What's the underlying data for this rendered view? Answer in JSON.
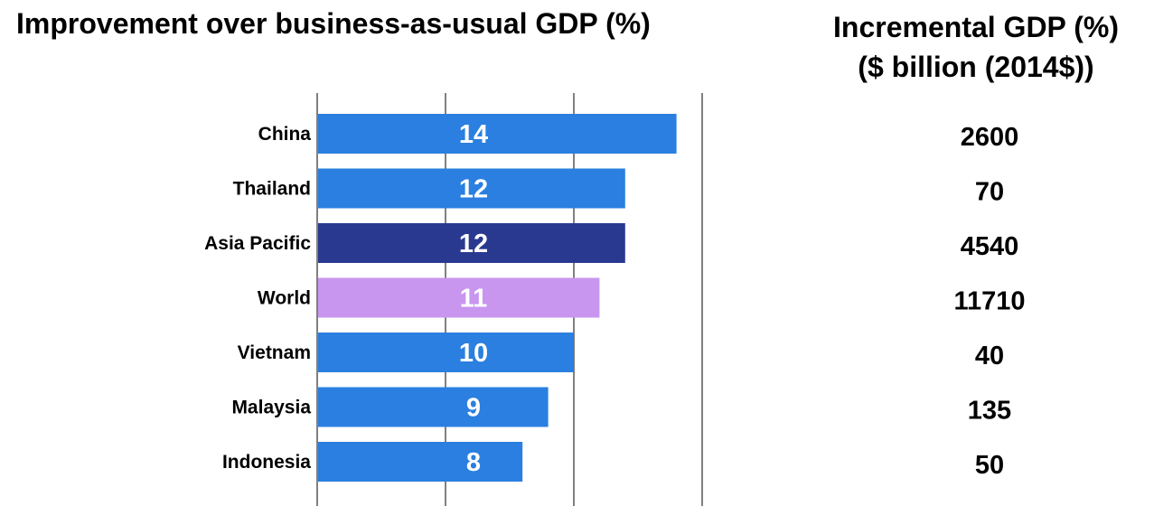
{
  "titles": {
    "left": "Improvement over business-as-usual GDP (%)",
    "right_line1": "Incremental GDP (%)",
    "right_line2": "($ billion (2014$))"
  },
  "colors": {
    "default_bar": "#2a7fe0",
    "asia_pacific": "#2a3990",
    "world": "#c896ef"
  },
  "chart_data": {
    "type": "bar",
    "orientation": "horizontal",
    "title": "Improvement over business-as-usual GDP (%)",
    "categories": [
      "China",
      "Thailand",
      "Asia Pacific",
      "World",
      "Vietnam",
      "Malaysia",
      "Indonesia"
    ],
    "values": [
      14,
      12,
      12,
      11,
      10,
      9,
      8
    ],
    "bar_colors": [
      "#2a7fe0",
      "#2a7fe0",
      "#2a3990",
      "#c896ef",
      "#2a7fe0",
      "#2a7fe0",
      "#2a7fe0"
    ],
    "xlim": [
      0,
      15
    ],
    "gridlines": [
      5,
      10,
      15
    ],
    "secondary_column": {
      "title": "Incremental GDP (%) ($ billion (2014$))",
      "values": [
        2600,
        70,
        4540,
        11710,
        40,
        135,
        50
      ]
    }
  }
}
